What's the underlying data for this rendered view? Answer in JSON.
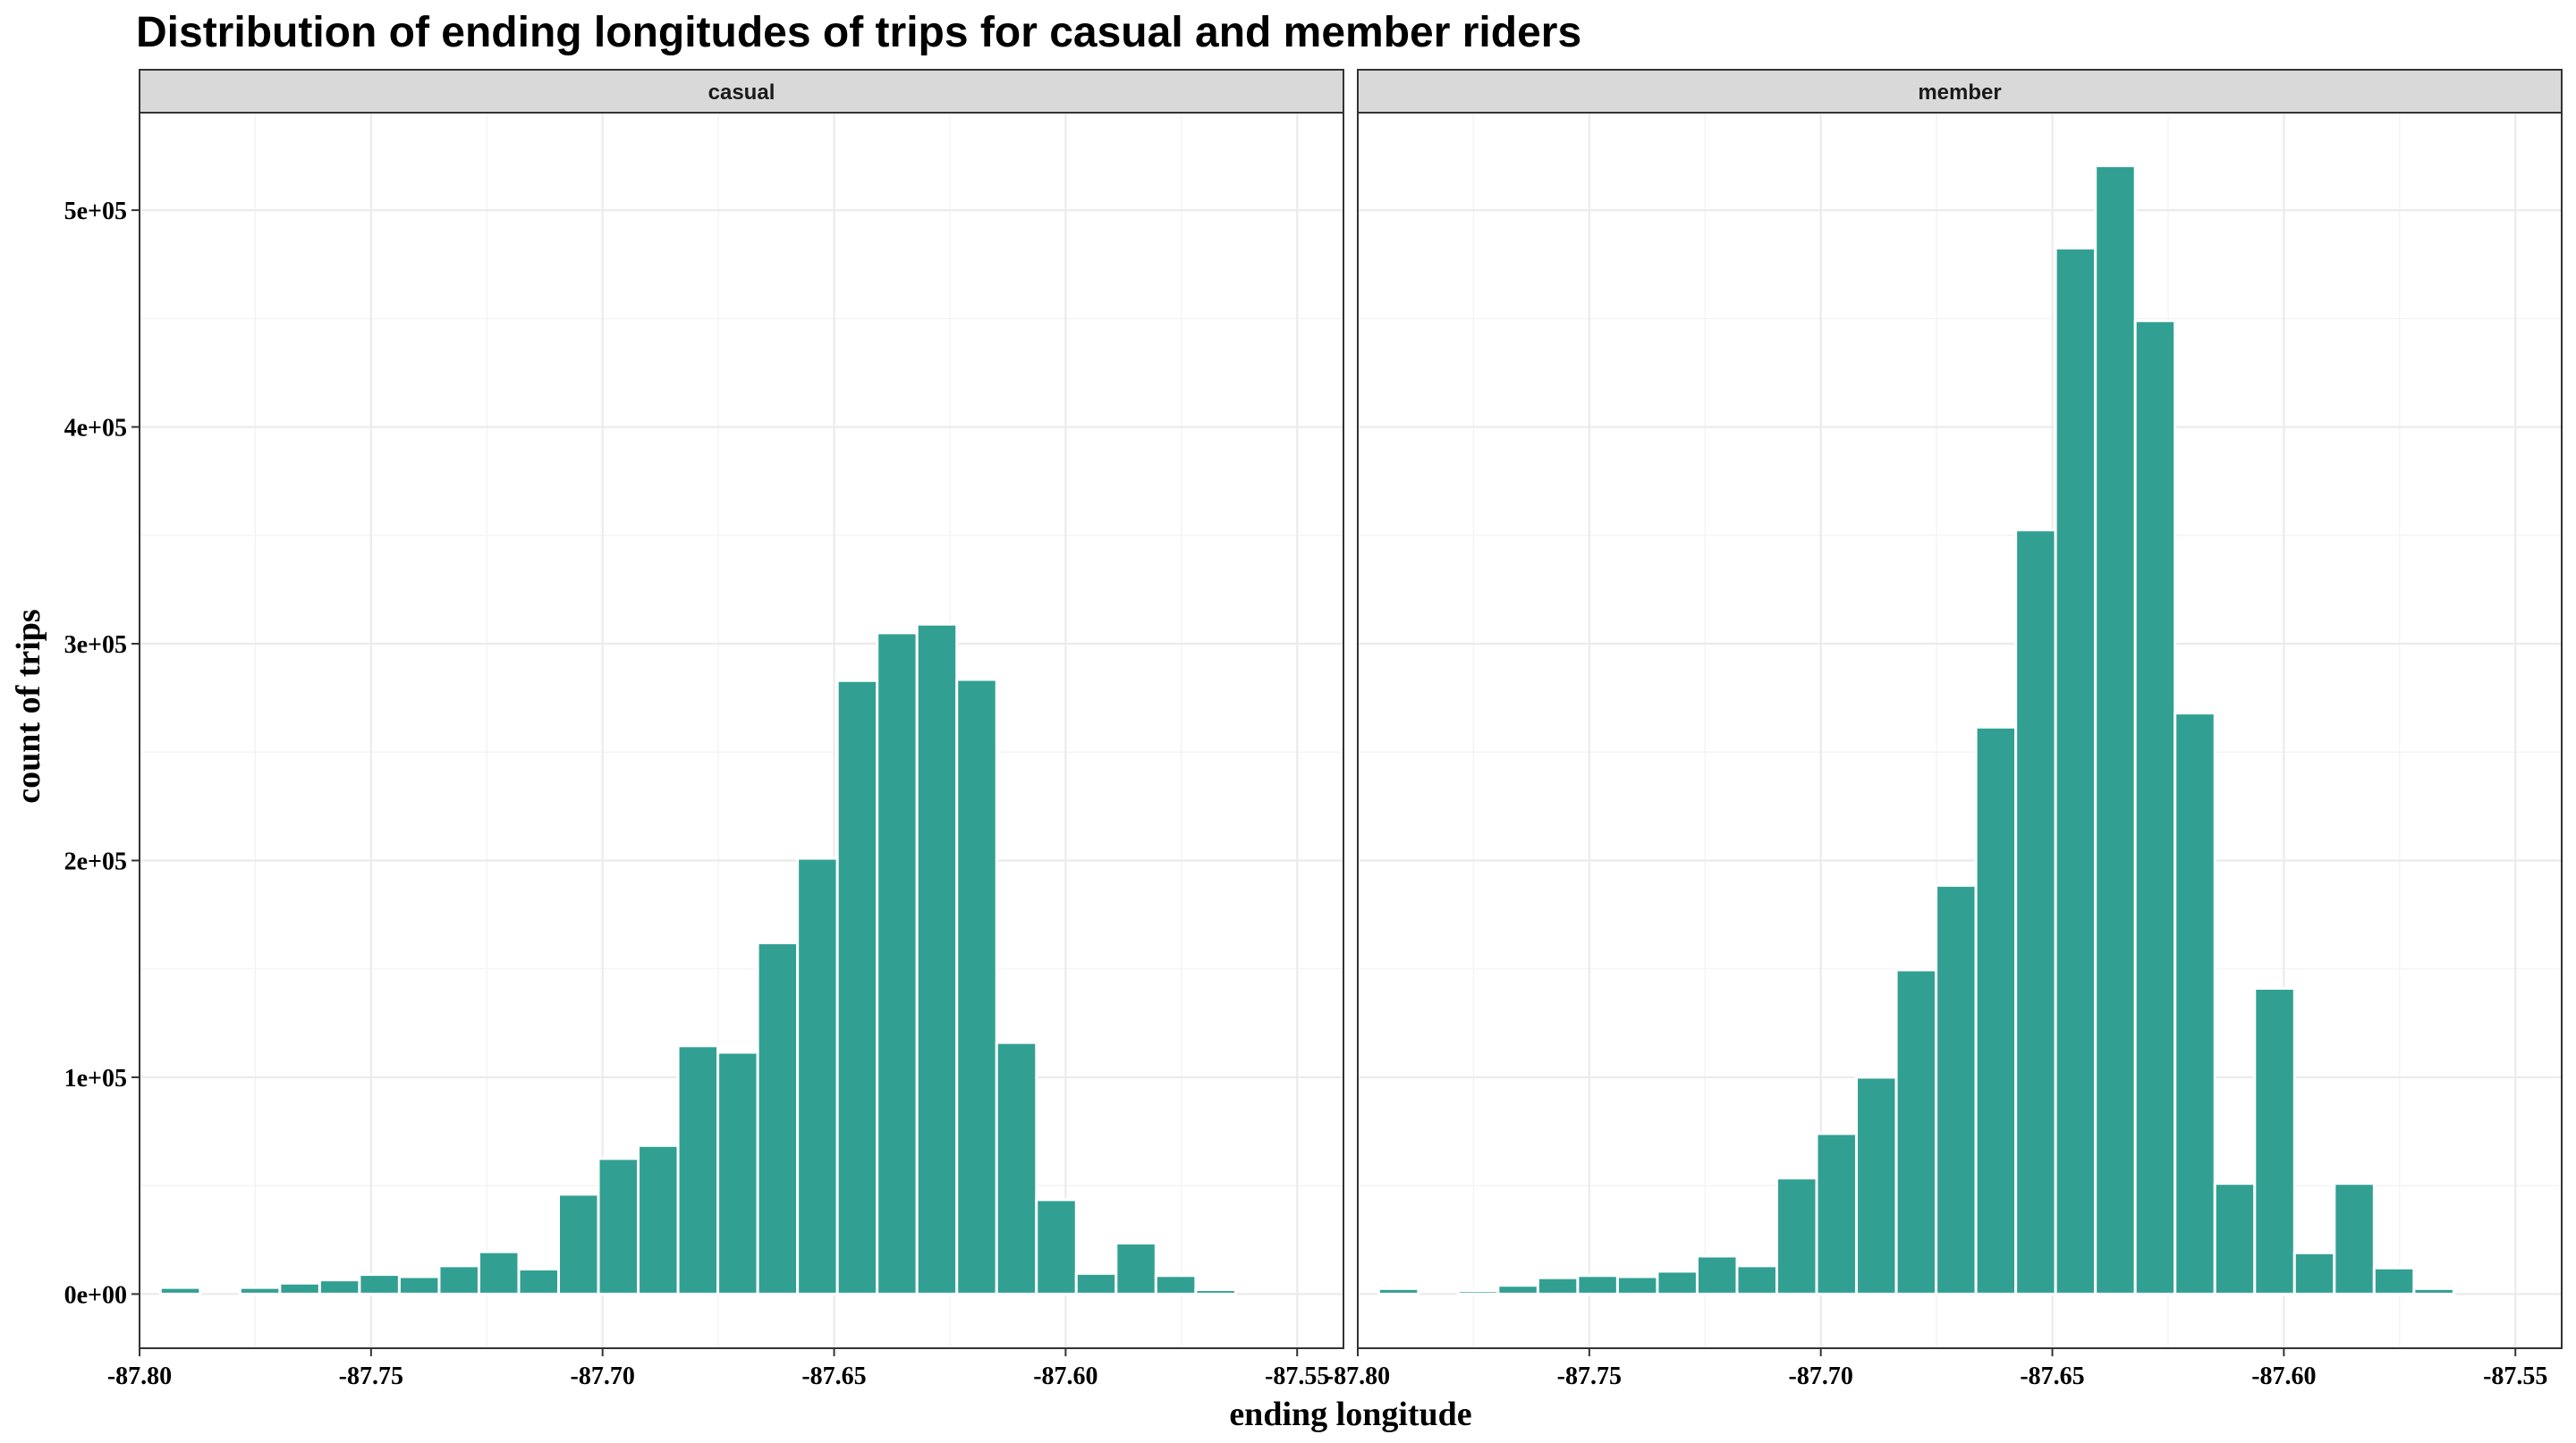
{
  "chart_data": {
    "type": "bar",
    "title": "Distribution of ending longitudes of trips for casual and member riders",
    "xlabel": "ending longitude",
    "ylabel": "count of trips",
    "xlim": [
      -87.8,
      -87.54
    ],
    "ylim": [
      -25000,
      545000
    ],
    "x_ticks": [
      -87.8,
      -87.75,
      -87.7,
      -87.65,
      -87.6,
      -87.55
    ],
    "x_tick_labels": [
      "-87.80",
      "-87.75",
      "-87.70",
      "-87.65",
      "-87.60",
      "-87.55"
    ],
    "y_ticks": [
      0,
      100000,
      200000,
      300000,
      400000,
      500000
    ],
    "y_tick_labels": [
      "0e+00",
      "1e+05",
      "2e+05",
      "3e+05",
      "4e+05",
      "5e+05"
    ],
    "bin_width": 0.0086,
    "bin_start": -87.7955,
    "fill_color": "#31a092",
    "grid": true,
    "panels": [
      {
        "name": "casual",
        "values": [
          3000,
          0,
          3000,
          5000,
          6500,
          9000,
          8000,
          13000,
          19500,
          11500,
          46000,
          62500,
          68500,
          114500,
          111500,
          162000,
          201000,
          283000,
          305000,
          309000,
          283500,
          116000,
          43500,
          9500,
          23500,
          8500,
          2000,
          0,
          0
        ]
      },
      {
        "name": "member",
        "values": [
          2500,
          0,
          1500,
          4000,
          7500,
          8500,
          8000,
          10500,
          17500,
          13000,
          53500,
          74000,
          100000,
          149500,
          188500,
          261500,
          352500,
          482500,
          520500,
          449000,
          268000,
          51000,
          141000,
          19000,
          51000,
          12000,
          2500,
          0,
          0
        ]
      }
    ]
  }
}
